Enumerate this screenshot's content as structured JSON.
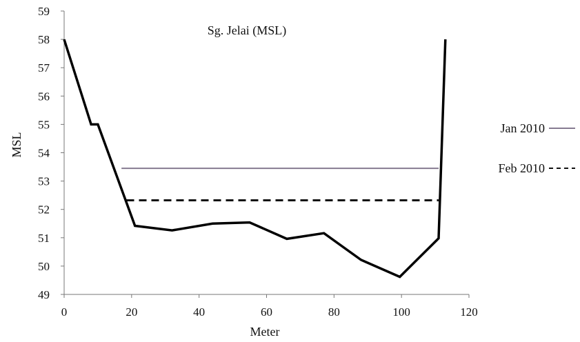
{
  "chart_data": {
    "type": "line",
    "title": "Sg. Jelai (MSL)",
    "xlabel": "Meter",
    "ylabel": "MSL",
    "xlim": [
      0,
      120
    ],
    "ylim": [
      49,
      59
    ],
    "x_ticks": [
      "0",
      "20",
      "40",
      "60",
      "80",
      "100",
      "120"
    ],
    "y_ticks": [
      "49",
      "50",
      "51",
      "52",
      "53",
      "54",
      "55",
      "56",
      "57",
      "58",
      "59"
    ],
    "grid": false,
    "legend_position": "right",
    "profile": {
      "color": "#000000",
      "points": [
        {
          "x": 0,
          "y": 58
        },
        {
          "x": 8,
          "y": 55
        },
        {
          "x": 10,
          "y": 55
        },
        {
          "x": 21,
          "y": 51.42
        },
        {
          "x": 32,
          "y": 51.26
        },
        {
          "x": 44,
          "y": 51.5
        },
        {
          "x": 55,
          "y": 51.54
        },
        {
          "x": 66,
          "y": 50.96
        },
        {
          "x": 77,
          "y": 51.16
        },
        {
          "x": 88,
          "y": 50.22
        },
        {
          "x": 99.5,
          "y": 49.62
        },
        {
          "x": 111,
          "y": 50.98
        },
        {
          "x": 113,
          "y": 58
        }
      ]
    },
    "series": [
      {
        "name": "Jan 2010",
        "color": "#857a90",
        "style": "solid",
        "x": [
          17,
          111
        ],
        "y": [
          53.45,
          53.45
        ]
      },
      {
        "name": "Feb 2010",
        "color": "#111111",
        "style": "dashed",
        "x": [
          18.5,
          111
        ],
        "y": [
          52.32,
          52.32
        ]
      }
    ]
  }
}
